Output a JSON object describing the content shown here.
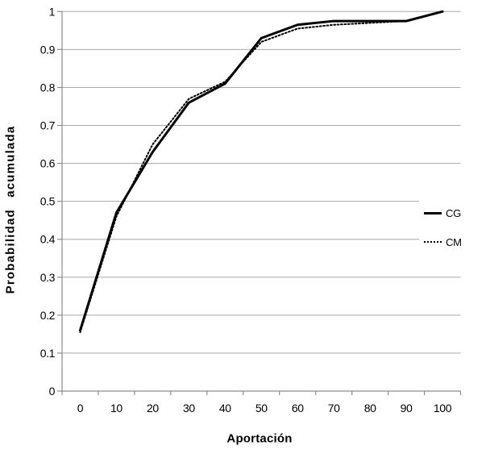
{
  "chart_data": {
    "type": "line",
    "title": "",
    "xlabel": "Aportación",
    "ylabel": "Probabilidad acumulada",
    "categories": [
      "0",
      "10",
      "20",
      "30",
      "40",
      "50",
      "60",
      "70",
      "80",
      "90",
      "100"
    ],
    "ytick_labels": [
      "0",
      "0.1",
      "0.2",
      "0.3",
      "0.4",
      "0.5",
      "0.6",
      "0.7",
      "0.8",
      "0.9",
      "1"
    ],
    "ylim": [
      0,
      1
    ],
    "grid": "horizontal-only",
    "legend_position": "middle-right",
    "series": [
      {
        "name": "CG",
        "line_style": "solid",
        "color": "#000000",
        "values": [
          0.16,
          0.47,
          0.63,
          0.76,
          0.81,
          0.93,
          0.965,
          0.975,
          0.975,
          0.975,
          1.0
        ]
      },
      {
        "name": "CM",
        "line_style": "dotted",
        "color": "#000000",
        "values": [
          0.155,
          0.46,
          0.65,
          0.77,
          0.815,
          0.92,
          0.955,
          0.965,
          0.97,
          0.975,
          1.0
        ]
      }
    ],
    "colors": {
      "grid": "#a8a8a8",
      "axis": "#8c8c8c",
      "text": "#000000",
      "background": "#ffffff"
    }
  }
}
